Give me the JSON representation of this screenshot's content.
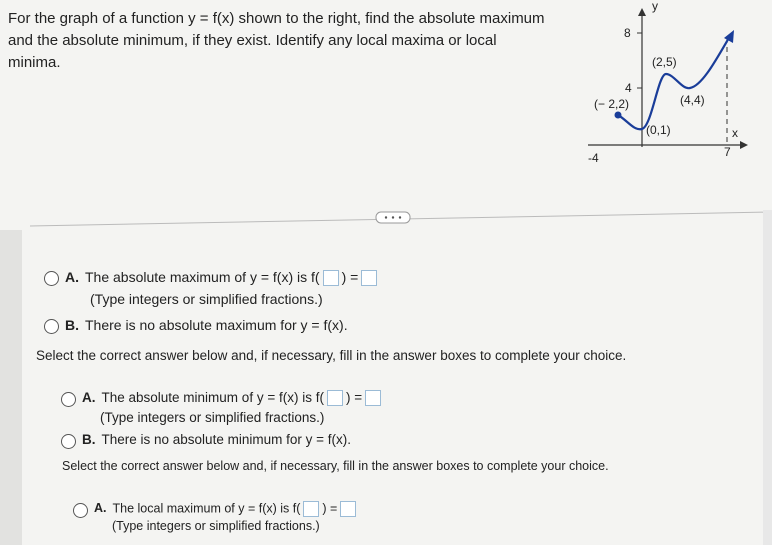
{
  "question": "For the graph of a function y = f(x) shown to the right, find the absolute maximum and the absolute minimum, if they exist. Identify any local maxima or local minima.",
  "graph": {
    "labels": [
      "y",
      "8",
      "(2,5)",
      "4",
      "(− 2,2)",
      "(4,4)",
      "(0,1)",
      "x",
      "-4",
      "7"
    ]
  },
  "parts": [
    {
      "options": [
        {
          "letter": "A.",
          "before": "The absolute maximum of y = f(x) is f(",
          "after": ") =",
          "hint": "(Type integers or simplified fractions.)"
        },
        {
          "letter": "B.",
          "text": "There is no absolute maximum for y = f(x)."
        }
      ]
    },
    {
      "instruction": "Select the correct answer below and, if necessary, fill in the answer boxes to complete your choice.",
      "options": [
        {
          "letter": "A.",
          "before": "The absolute minimum of y = f(x) is f(",
          "after": ") =",
          "hint": "(Type integers or simplified fractions.)"
        },
        {
          "letter": "B.",
          "text": "There is no absolute minimum for y = f(x)."
        }
      ]
    },
    {
      "instruction": "Select the correct answer below and, if necessary, fill in the answer boxes to complete your choice.",
      "options": [
        {
          "letter": "A.",
          "before": "The local maximum of y = f(x) is f(",
          "after": ") =",
          "hint": "(Type integers or simplified fractions.)"
        }
      ]
    }
  ]
}
